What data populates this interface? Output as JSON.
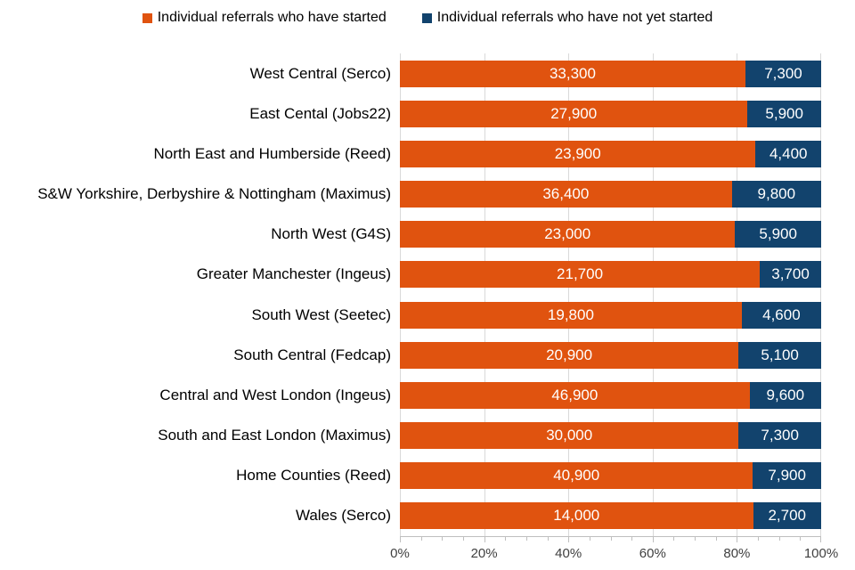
{
  "legend": {
    "items": [
      {
        "label": "Individual referrals who have started",
        "color": "#E0530F"
      },
      {
        "label": "Individual referrals who have not yet started",
        "color": "#12436D"
      }
    ]
  },
  "chart_data": {
    "type": "bar",
    "subtype": "horizontal-stacked-100percent",
    "title": "",
    "xlabel": "",
    "ylabel": "",
    "legend_position": "top",
    "categories": [
      "West Central (Serco)",
      "East Cental  (Jobs22)",
      "North East and Humberside (Reed)",
      "S&W Yorkshire, Derbyshire & Nottingham (Maximus)",
      "North West (G4S)",
      "Greater Manchester (Ingeus)",
      "South West (Seetec)",
      "South Central (Fedcap)",
      "Central and West London (Ingeus)",
      "South and East London (Maximus)",
      "Home Counties (Reed)",
      "Wales (Serco)"
    ],
    "series": [
      {
        "name": "Individual referrals who have started",
        "color": "#E0530F",
        "values": [
          33300,
          27900,
          23900,
          36400,
          23000,
          21700,
          19800,
          20900,
          46900,
          30000,
          40900,
          14000
        ],
        "labels": [
          "33,300",
          "27,900",
          "23,900",
          "36,400",
          "23,000",
          "21,700",
          "19,800",
          "20,900",
          "46,900",
          "30,000",
          "40,900",
          "14,000"
        ]
      },
      {
        "name": "Individual referrals who have not yet started",
        "color": "#12436D",
        "values": [
          7300,
          5900,
          4400,
          9800,
          5900,
          3700,
          4600,
          5100,
          9600,
          7300,
          7900,
          2700
        ],
        "labels": [
          "7,300",
          "5,900",
          "4,400",
          "9,800",
          "5,900",
          "3,700",
          "4,600",
          "5,100",
          "9,600",
          "7,300",
          "7,900",
          "2,700"
        ]
      }
    ],
    "xlim_pct": [
      0,
      100
    ],
    "x_major_ticks": [
      "0%",
      "20%",
      "40%",
      "60%",
      "80%",
      "100%"
    ],
    "x_major_step_pct": 20,
    "x_minor_step_pct": 5,
    "gridline_positions_pct": [
      0,
      20,
      40,
      60,
      80,
      100
    ],
    "grid": "vertical-major-on"
  },
  "colors": {
    "background": "#FFFFFF",
    "gridline": "#D9D9D9",
    "axis_line": "#BFBFBF",
    "tick": "#BFBFBF",
    "axis_label": "#404040",
    "category_label": "#000000",
    "bar_value_label": "#FFFFFF"
  }
}
